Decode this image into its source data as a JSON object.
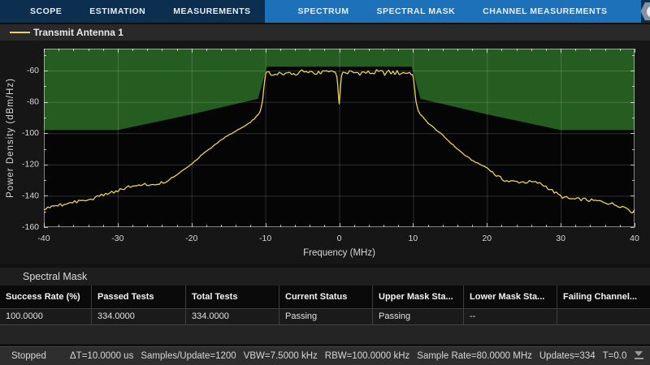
{
  "toolbar": {
    "tabs": [
      {
        "label": "SCOPE",
        "contextual": false
      },
      {
        "label": "ESTIMATION",
        "contextual": false
      },
      {
        "label": "MEASUREMENTS",
        "contextual": false
      },
      {
        "label": "SPECTRUM",
        "contextual": true
      },
      {
        "label": "SPECTRAL MASK",
        "contextual": true
      },
      {
        "label": "CHANNEL MEASUREMENTS",
        "contextual": true
      }
    ],
    "help_label": "?"
  },
  "legend": {
    "series_label": "Transmit Antenna 1"
  },
  "chart_data": {
    "type": "line",
    "title": "",
    "xlabel": "Frequency (MHz)",
    "ylabel": "Power Density (dBm/Hz)",
    "xlim": [
      -40,
      40
    ],
    "ylim": [
      -160,
      -46
    ],
    "x_ticks": [
      -40,
      -30,
      -20,
      -10,
      0,
      10,
      20,
      30,
      40
    ],
    "y_ticks": [
      -160,
      -140,
      -120,
      -100,
      -80,
      -60
    ],
    "x_minor_step": 2,
    "y_minor_step": 10,
    "grid": true,
    "colors": {
      "figure_bg": "#161616",
      "plot_bg": "#050505",
      "grid": "rgba(255,255,255,0.17)",
      "border": "rgba(255,255,255,0.5)",
      "tick": "rgba(255,255,255,0.7)",
      "text": "#d8d8d8"
    },
    "mask": {
      "name": "upper-spectral-mask",
      "color": "#255c1f",
      "points": [
        [
          -40,
          -98
        ],
        [
          -30,
          -98
        ],
        [
          -20,
          -88
        ],
        [
          -11,
          -78
        ],
        [
          -9.8,
          -57.5
        ],
        [
          9.8,
          -57.5
        ],
        [
          11,
          -78
        ],
        [
          20,
          -88
        ],
        [
          30,
          -98
        ],
        [
          40,
          -98
        ]
      ]
    },
    "series": [
      {
        "name": "Transmit Antenna 1",
        "color": "#eed35a",
        "envelope": [
          [
            -40,
            -148.5
          ],
          [
            -39,
            -147.5
          ],
          [
            -38,
            -146
          ],
          [
            -37,
            -145
          ],
          [
            -36,
            -144
          ],
          [
            -35,
            -143.2
          ],
          [
            -34,
            -142.6
          ],
          [
            -33,
            -141
          ],
          [
            -32,
            -139.5
          ],
          [
            -31,
            -138
          ],
          [
            -30,
            -136.5
          ],
          [
            -29,
            -135
          ],
          [
            -28,
            -134
          ],
          [
            -27,
            -133.2
          ],
          [
            -26,
            -133
          ],
          [
            -25,
            -132.5
          ],
          [
            -24,
            -131.8
          ],
          [
            -23,
            -129.8
          ],
          [
            -22,
            -126.8
          ],
          [
            -21,
            -123.2
          ],
          [
            -20,
            -119.8
          ],
          [
            -19,
            -115.5
          ],
          [
            -18,
            -111.5
          ],
          [
            -17,
            -108
          ],
          [
            -16,
            -104.5
          ],
          [
            -15,
            -101.2
          ],
          [
            -14,
            -98.5
          ],
          [
            -13,
            -96
          ],
          [
            -12,
            -92.8
          ],
          [
            -11.5,
            -90.8
          ],
          [
            -11,
            -88.2
          ],
          [
            -10.7,
            -85.8
          ],
          [
            -10.4,
            -80
          ],
          [
            -10.2,
            -72
          ],
          [
            -10.05,
            -65
          ],
          [
            -9.9,
            -61.5
          ],
          [
            -9,
            -61.2
          ],
          [
            -8,
            -61.5
          ],
          [
            -7,
            -61.3
          ],
          [
            -6,
            -61.6
          ],
          [
            -5,
            -61.2
          ],
          [
            -4,
            -61.4
          ],
          [
            -3,
            -61.3
          ],
          [
            -2,
            -61.5
          ],
          [
            -1,
            -61.2
          ],
          [
            -0.5,
            -61.5
          ],
          [
            -0.3,
            -64
          ],
          [
            -0.2,
            -69
          ],
          [
            -0.1,
            -76
          ],
          [
            0,
            -81
          ],
          [
            0.1,
            -76
          ],
          [
            0.2,
            -69
          ],
          [
            0.3,
            -63.5
          ],
          [
            0.5,
            -61.3
          ],
          [
            1,
            -61.2
          ],
          [
            2,
            -61.4
          ],
          [
            3,
            -61.2
          ],
          [
            4,
            -61.5
          ],
          [
            5,
            -61.2
          ],
          [
            6,
            -61.4
          ],
          [
            7,
            -61.3
          ],
          [
            8,
            -61.5
          ],
          [
            9,
            -61.3
          ],
          [
            9.9,
            -61.5
          ],
          [
            10.05,
            -65
          ],
          [
            10.2,
            -72
          ],
          [
            10.4,
            -80
          ],
          [
            10.7,
            -85.5
          ],
          [
            11,
            -88
          ],
          [
            11.5,
            -90.8
          ],
          [
            12,
            -93.3
          ],
          [
            13,
            -97.3
          ],
          [
            14,
            -101.3
          ],
          [
            15,
            -105.8
          ],
          [
            16,
            -110
          ],
          [
            17,
            -114
          ],
          [
            18,
            -117.3
          ],
          [
            19,
            -119.8
          ],
          [
            20,
            -122
          ],
          [
            21,
            -126
          ],
          [
            22,
            -129.3
          ],
          [
            23,
            -130.8
          ],
          [
            24,
            -131
          ],
          [
            25,
            -131.2
          ],
          [
            26,
            -131.2
          ],
          [
            27,
            -131.8
          ],
          [
            28,
            -134
          ],
          [
            29,
            -137.2
          ],
          [
            30,
            -140.3
          ],
          [
            31,
            -141.8
          ],
          [
            32,
            -142.3
          ],
          [
            33,
            -142.2
          ],
          [
            34,
            -143
          ],
          [
            35,
            -143.4
          ],
          [
            36,
            -144
          ],
          [
            37,
            -145.3
          ],
          [
            38,
            -146.3
          ],
          [
            39,
            -147.8
          ],
          [
            39.6,
            -150
          ],
          [
            40,
            -149.5
          ]
        ],
        "noise_segments": [
          {
            "range": [
              -40,
              -22.5
            ],
            "amp": 1.1
          },
          {
            "range": [
              -22.5,
              -10.3
            ],
            "amp": 0.3
          },
          {
            "range": [
              -10.3,
              -0.45
            ],
            "amp": 1.8
          },
          {
            "range": [
              -0.45,
              0.45
            ],
            "amp": 0.5
          },
          {
            "range": [
              0.45,
              10.3
            ],
            "amp": 1.8
          },
          {
            "range": [
              10.3,
              20.5
            ],
            "amp": 0.3
          },
          {
            "range": [
              20.5,
              40
            ],
            "amp": 1.1
          }
        ]
      }
    ]
  },
  "mask_panel": {
    "title": "Spectral Mask",
    "table": {
      "columns": [
        "Success Rate (%)",
        "Passed Tests",
        "Total Tests",
        "Current Status",
        "Upper Mask Sta...",
        "Lower Mask Sta...",
        "Failing Channel..."
      ],
      "rows": [
        [
          "100.0000",
          "334.0000",
          "334.0000",
          "Passing",
          "Passing",
          "--",
          ""
        ]
      ]
    }
  },
  "status_bar": {
    "state": "Stopped",
    "metrics": [
      "ΔT=10.0000 us",
      "Samples/Update=1200",
      "VBW=7.5000 kHz",
      "RBW=100.0000 kHz",
      "Sample Rate=80.0000 MHz",
      "Updates=334",
      "T=0.0"
    ]
  }
}
